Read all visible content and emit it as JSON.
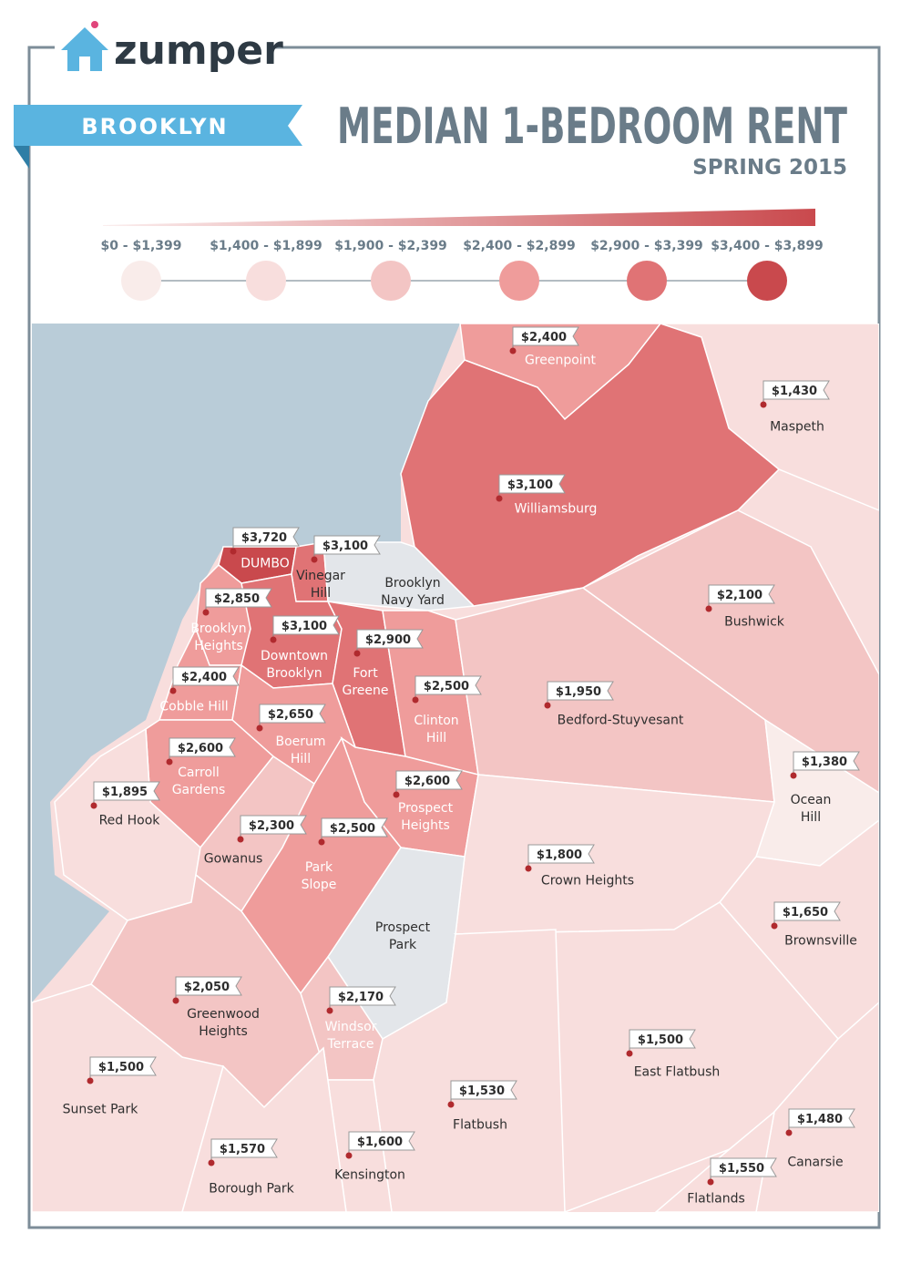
{
  "header": {
    "brand": "zumper",
    "borough": "BROOKLYN",
    "title": "MEDIAN 1-BEDROOM RENT",
    "subtitle": "SPRING 2015"
  },
  "legend": [
    {
      "label": "$0 - $1,399",
      "color": "#f9ecea"
    },
    {
      "label": "$1,400 - $1,899",
      "color": "#f8dedd"
    },
    {
      "label": "$1,900 - $2,399",
      "color": "#f3c5c4"
    },
    {
      "label": "$2,400 - $2,899",
      "color": "#ef9c9b"
    },
    {
      "label": "$2,900 - $3,399",
      "color": "#e07375"
    },
    {
      "label": "$3,400 - $3,899",
      "color": "#c9494d"
    }
  ],
  "neighborhoods": [
    {
      "name": "Greenpoint",
      "rent": "$2,400",
      "color": "#ef9c9b"
    },
    {
      "name": "Maspeth",
      "rent": "$1,430",
      "color": "#f8dedd"
    },
    {
      "name": "Williamsburg",
      "rent": "$3,100",
      "color": "#e07375"
    },
    {
      "name": "DUMBO",
      "rent": "$3,720",
      "color": "#c9494d"
    },
    {
      "name": "Vinegar Hill",
      "rent": "$3,100",
      "color": "#e07375"
    },
    {
      "name": "Brooklyn Navy Yard",
      "color": "#e3e6ea"
    },
    {
      "name": "Brooklyn Heights",
      "rent": "$2,850",
      "color": "#ef9c9b"
    },
    {
      "name": "Downtown Brooklyn",
      "rent": "$3,100",
      "color": "#e07375"
    },
    {
      "name": "Fort Greene",
      "rent": "$2,900",
      "color": "#e07375"
    },
    {
      "name": "Cobble Hill",
      "rent": "$2,400",
      "color": "#ef9c9b"
    },
    {
      "name": "Clinton Hill",
      "rent": "$2,500",
      "color": "#ef9c9b"
    },
    {
      "name": "Bedford-Stuyvesant",
      "rent": "$1,950",
      "color": "#f3c5c4"
    },
    {
      "name": "Bushwick",
      "rent": "$2,100",
      "color": "#f3c5c4"
    },
    {
      "name": "Boerum Hill",
      "rent": "$2,650",
      "color": "#ef9c9b"
    },
    {
      "name": "Carroll Gardens",
      "rent": "$2,600",
      "color": "#ef9c9b"
    },
    {
      "name": "Ocean Hill",
      "rent": "$1,380",
      "color": "#f9ecea"
    },
    {
      "name": "Red Hook",
      "rent": "$1,895",
      "color": "#f8dedd"
    },
    {
      "name": "Prospect Heights",
      "rent": "$2,600",
      "color": "#ef9c9b"
    },
    {
      "name": "Gowanus",
      "rent": "$2,300",
      "color": "#f3c5c4"
    },
    {
      "name": "Park Slope",
      "rent": "$2,500",
      "color": "#ef9c9b"
    },
    {
      "name": "Crown Heights",
      "rent": "$1,800",
      "color": "#f8dedd"
    },
    {
      "name": "Brownsville",
      "rent": "$1,650",
      "color": "#f8dedd"
    },
    {
      "name": "Prospect Park",
      "color": "#e3e6ea"
    },
    {
      "name": "Greenwood Heights",
      "rent": "$2,050",
      "color": "#f3c5c4"
    },
    {
      "name": "Windsor Terrace",
      "rent": "$2,170",
      "color": "#f3c5c4"
    },
    {
      "name": "East Flatbush",
      "rent": "$1,500",
      "color": "#f8dedd"
    },
    {
      "name": "Sunset Park",
      "rent": "$1,500",
      "color": "#f8dedd"
    },
    {
      "name": "Flatbush",
      "rent": "$1,530",
      "color": "#f8dedd"
    },
    {
      "name": "Canarsie",
      "rent": "$1,480",
      "color": "#f8dedd"
    },
    {
      "name": "Flatlands",
      "rent": "$1,550",
      "color": "#f8dedd"
    },
    {
      "name": "Kensington",
      "rent": "$1,600",
      "color": "#f8dedd"
    },
    {
      "name": "Borough Park",
      "rent": "$1,570",
      "color": "#f8dedd"
    }
  ]
}
